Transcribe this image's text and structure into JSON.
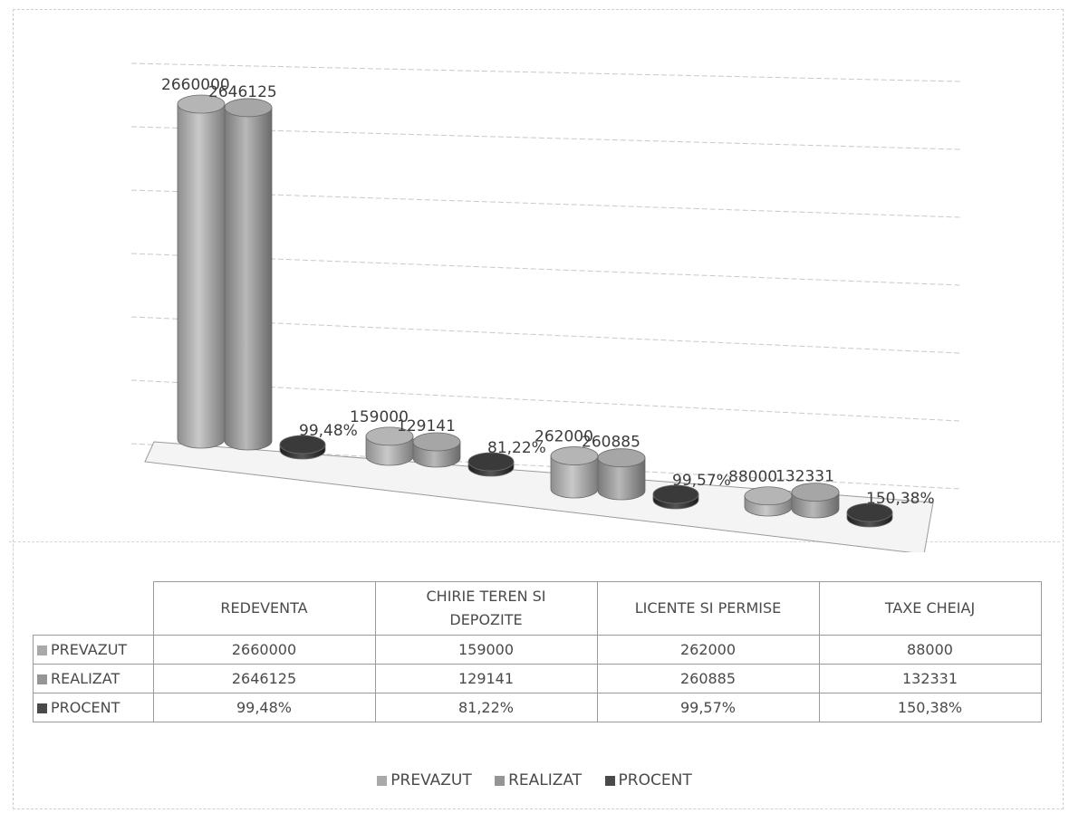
{
  "chart_data": {
    "type": "bar",
    "categories": [
      "REDEVENTA",
      "CHIRIE TEREN SI DEPOZITE",
      "LICENTE SI PERMISE",
      "TAXE CHEIAJ"
    ],
    "series": [
      {
        "name": "PREVAZUT",
        "values": [
          2660000,
          159000,
          262000,
          88000
        ],
        "labels": [
          "2660000",
          "159000",
          "262000",
          "88000"
        ],
        "color": "#a9a9a9"
      },
      {
        "name": "REALIZAT",
        "values": [
          2646125,
          129141,
          260885,
          132331
        ],
        "labels": [
          "2646125",
          "129141",
          "260885",
          "132331"
        ],
        "color": "#959595"
      },
      {
        "name": "PROCENT",
        "values": [
          99.48,
          81.22,
          99.57,
          150.38
        ],
        "labels": [
          "99,48%",
          "81,22%",
          "99,57%",
          "150,38%"
        ],
        "color": "#2f2f2f"
      }
    ],
    "grid": true,
    "legend_position": "bottom",
    "style": "3d-cylinder"
  },
  "table": {
    "headers": [
      "REDEVENTA",
      "CHIRIE TEREN SI DEPOZITE",
      "LICENTE SI PERMISE",
      "TAXE CHEIAJ"
    ],
    "rows": [
      {
        "label": "PREVAZUT",
        "cells": [
          "2660000",
          "159000",
          "262000",
          "88000"
        ]
      },
      {
        "label": "REALIZAT",
        "cells": [
          "2646125",
          "129141",
          "260885",
          "132331"
        ]
      },
      {
        "label": "PROCENT",
        "cells": [
          "99,48%",
          "81,22%",
          "99,57%",
          "150,38%"
        ]
      }
    ]
  },
  "legend": {
    "items": [
      "PREVAZUT",
      "REALIZAT",
      "PROCENT"
    ]
  }
}
